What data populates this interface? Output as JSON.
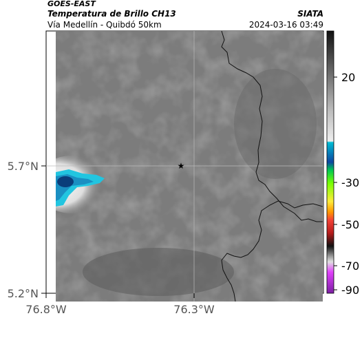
{
  "header": {
    "satellite": "GOES-EAST",
    "product": "Temperatura de Brillo CH13",
    "region": "Vía Medellín - Quibdó 50km",
    "source": "SIATA",
    "timestamp": "2024-03-16 03:49"
  },
  "axes": {
    "y_ticks": [
      {
        "label": "5.7°N",
        "lat": 5.7
      },
      {
        "label": "5.2°N",
        "lat": 5.2
      }
    ],
    "x_ticks": [
      {
        "label": "76.8°W",
        "lon": -76.8
      },
      {
        "label": "76.3°W",
        "lon": -76.3
      }
    ]
  },
  "colorbar": {
    "ticks": [
      {
        "label": "20",
        "value": 20
      },
      {
        "label": "-30",
        "value": -30
      },
      {
        "label": "-50",
        "value": -50
      },
      {
        "label": "-70",
        "value": -70
      },
      {
        "label": "-90",
        "value": -90
      }
    ]
  },
  "colors": {
    "map_gray": "#7c7c7c",
    "cloud_blue": "#0b6aa8",
    "cloud_cyan": "#22c5e0",
    "border_line": "#111111"
  },
  "marker": {
    "icon": "star-icon"
  }
}
